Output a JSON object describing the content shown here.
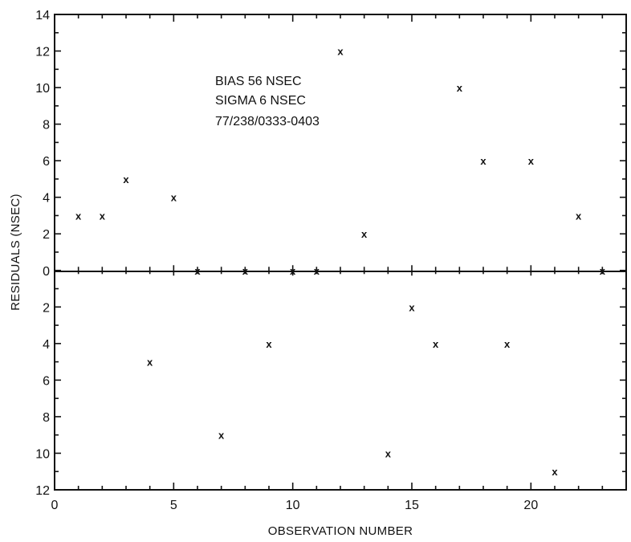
{
  "chart_data": {
    "type": "scatter",
    "xlabel": "OBSERVATION NUMBER",
    "ylabel": "RESIDUALS (NSEC)",
    "xlim": [
      0,
      24
    ],
    "ylim": [
      -12,
      14
    ],
    "x_ticks": [
      0,
      5,
      10,
      15,
      20
    ],
    "y_ticks": [
      {
        "value": 14,
        "label": "14"
      },
      {
        "value": 12,
        "label": "12"
      },
      {
        "value": 10,
        "label": "10"
      },
      {
        "value": 8,
        "label": "8"
      },
      {
        "value": 6,
        "label": "6"
      },
      {
        "value": 4,
        "label": "4"
      },
      {
        "value": 2,
        "label": "2"
      },
      {
        "value": 0,
        "label": "0"
      },
      {
        "value": -2,
        "label": "2"
      },
      {
        "value": -4,
        "label": "4"
      },
      {
        "value": -6,
        "label": "6"
      },
      {
        "value": -8,
        "label": "8"
      },
      {
        "value": -10,
        "label": "10"
      },
      {
        "value": -12,
        "label": "12"
      }
    ],
    "marker": "x",
    "annotations": [
      "BIAS 56 NSEC",
      "SIGMA 6 NSEC",
      "77/238/0333-0403"
    ],
    "points": [
      {
        "x": 1,
        "y": 3
      },
      {
        "x": 2,
        "y": 3
      },
      {
        "x": 3,
        "y": 5
      },
      {
        "x": 4,
        "y": -5
      },
      {
        "x": 5,
        "y": 4
      },
      {
        "x": 6,
        "y": 0
      },
      {
        "x": 7,
        "y": -9
      },
      {
        "x": 8,
        "y": 0
      },
      {
        "x": 9,
        "y": -4
      },
      {
        "x": 10,
        "y": 0
      },
      {
        "x": 11,
        "y": 0
      },
      {
        "x": 12,
        "y": 12
      },
      {
        "x": 13,
        "y": 2
      },
      {
        "x": 14,
        "y": -10
      },
      {
        "x": 15,
        "y": -2
      },
      {
        "x": 16,
        "y": -4
      },
      {
        "x": 17,
        "y": 10
      },
      {
        "x": 18,
        "y": 6
      },
      {
        "x": 19,
        "y": -4
      },
      {
        "x": 20,
        "y": 6
      },
      {
        "x": 21,
        "y": -11
      },
      {
        "x": 22,
        "y": 3
      },
      {
        "x": 23,
        "y": 0
      }
    ]
  }
}
